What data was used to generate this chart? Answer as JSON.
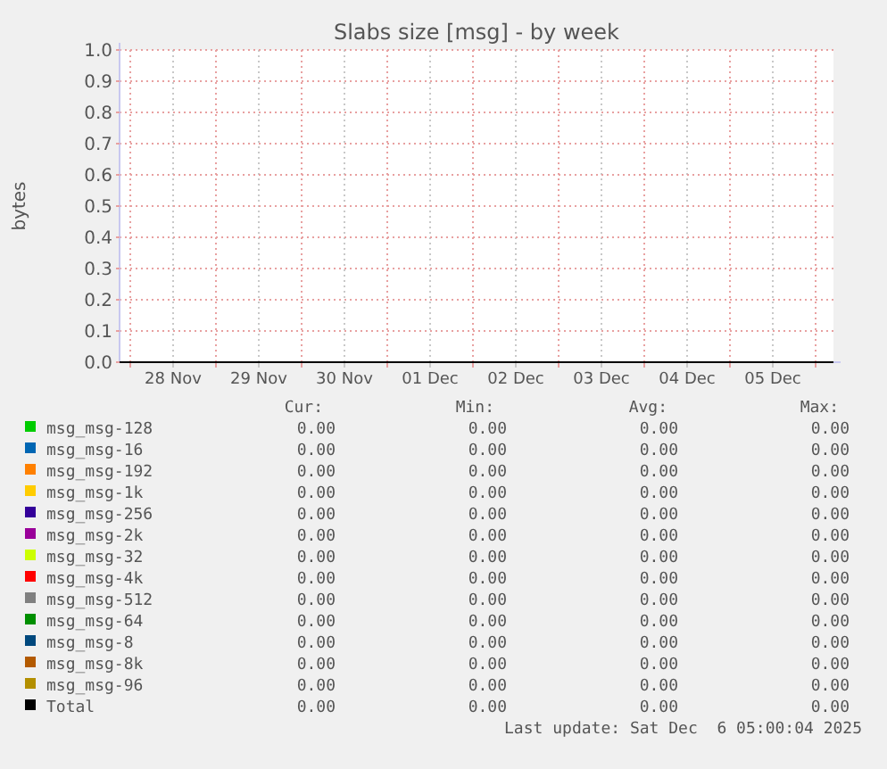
{
  "chart_data": {
    "type": "line",
    "title": "Slabs size [msg] - by week",
    "ylabel": "bytes",
    "x": [
      "2025-11-27T21:00",
      "2025-12-06T05:00"
    ],
    "xlim": [
      "2025-11-27T21:00",
      "2025-12-06T05:00"
    ],
    "xticks": [
      {
        "value": "2025-11-28T00:00",
        "label": null
      },
      {
        "value": "2025-11-28T12:00",
        "label": "28 Nov"
      },
      {
        "value": "2025-11-29T00:00",
        "label": null
      },
      {
        "value": "2025-11-29T12:00",
        "label": "29 Nov"
      },
      {
        "value": "2025-11-30T00:00",
        "label": null
      },
      {
        "value": "2025-11-30T12:00",
        "label": "30 Nov"
      },
      {
        "value": "2025-12-01T00:00",
        "label": null
      },
      {
        "value": "2025-12-01T12:00",
        "label": "01 Dec"
      },
      {
        "value": "2025-12-02T00:00",
        "label": null
      },
      {
        "value": "2025-12-02T12:00",
        "label": "02 Dec"
      },
      {
        "value": "2025-12-03T00:00",
        "label": null
      },
      {
        "value": "2025-12-03T12:00",
        "label": "03 Dec"
      },
      {
        "value": "2025-12-04T00:00",
        "label": null
      },
      {
        "value": "2025-12-04T12:00",
        "label": "04 Dec"
      },
      {
        "value": "2025-12-05T00:00",
        "label": null
      },
      {
        "value": "2025-12-05T12:00",
        "label": "05 Dec"
      },
      {
        "value": "2025-12-06T00:00",
        "label": null
      }
    ],
    "ylim": [
      0,
      1
    ],
    "yticks": [
      {
        "value": 0,
        "label": "0.0"
      },
      {
        "value": 0.1,
        "label": "0.1"
      },
      {
        "value": 0.2,
        "label": "0.2"
      },
      {
        "value": 0.3,
        "label": "0.3"
      },
      {
        "value": 0.4,
        "label": "0.4"
      },
      {
        "value": 0.5,
        "label": "0.5"
      },
      {
        "value": 0.6,
        "label": "0.6"
      },
      {
        "value": 0.7,
        "label": "0.7"
      },
      {
        "value": 0.8,
        "label": "0.8"
      },
      {
        "value": 0.9,
        "label": "0.9"
      },
      {
        "value": 1,
        "label": "1.0"
      }
    ],
    "grid": true,
    "legend": "bottom",
    "marker": "none",
    "line_style": "solid",
    "series": [
      {
        "name": "msg_msg-128",
        "color": "#00cc00",
        "values": [
          null,
          null
        ]
      },
      {
        "name": "msg_msg-16",
        "color": "#0066b3",
        "values": [
          null,
          null
        ]
      },
      {
        "name": "msg_msg-192",
        "color": "#ff8000",
        "values": [
          null,
          null
        ]
      },
      {
        "name": "msg_msg-1k",
        "color": "#ffcc00",
        "values": [
          null,
          null
        ]
      },
      {
        "name": "msg_msg-256",
        "color": "#330099",
        "values": [
          null,
          null
        ]
      },
      {
        "name": "msg_msg-2k",
        "color": "#990099",
        "values": [
          null,
          null
        ]
      },
      {
        "name": "msg_msg-32",
        "color": "#ccff00",
        "values": [
          null,
          null
        ]
      },
      {
        "name": "msg_msg-4k",
        "color": "#ff0000",
        "values": [
          null,
          null
        ]
      },
      {
        "name": "msg_msg-512",
        "color": "#808080",
        "values": [
          null,
          null
        ]
      },
      {
        "name": "msg_msg-64",
        "color": "#008f00",
        "values": [
          null,
          null
        ]
      },
      {
        "name": "msg_msg-8",
        "color": "#00487d",
        "values": [
          null,
          null
        ]
      },
      {
        "name": "msg_msg-8k",
        "color": "#b35a00",
        "values": [
          null,
          null
        ]
      },
      {
        "name": "msg_msg-96",
        "color": "#b38f00",
        "values": [
          null,
          null
        ]
      },
      {
        "name": "Total",
        "color": "#000000",
        "values": [
          0,
          0
        ]
      }
    ],
    "annotations": [
      "Cur:",
      "Min:",
      "Avg:",
      "Max:",
      "0.00",
      "0.00",
      "0.00",
      "0.00",
      "0.00",
      "0.00",
      "0.00",
      "0.00",
      "0.00",
      "0.00",
      "0.00",
      "0.00",
      "0.00",
      "0.00",
      "0.00",
      "0.00",
      "0.00",
      "0.00",
      "0.00",
      "0.00",
      "0.00",
      "0.00",
      "0.00",
      "0.00",
      "0.00",
      "0.00",
      "0.00",
      "0.00",
      "0.00",
      "0.00",
      "0.00",
      "0.00",
      "0.00",
      "0.00",
      "0.00",
      "0.00",
      "0.00",
      "0.00",
      "0.00",
      "0.00",
      "0.00",
      "0.00",
      "0.00",
      "0.00",
      "0.00",
      "0.00",
      "0.00",
      "0.00",
      "0.00",
      "0.00",
      "0.00",
      "0.00",
      "0.00",
      "0.00",
      "0.00",
      "0.00",
      "Last update: Sat Dec  6 05:00:04 2025"
    ]
  }
}
